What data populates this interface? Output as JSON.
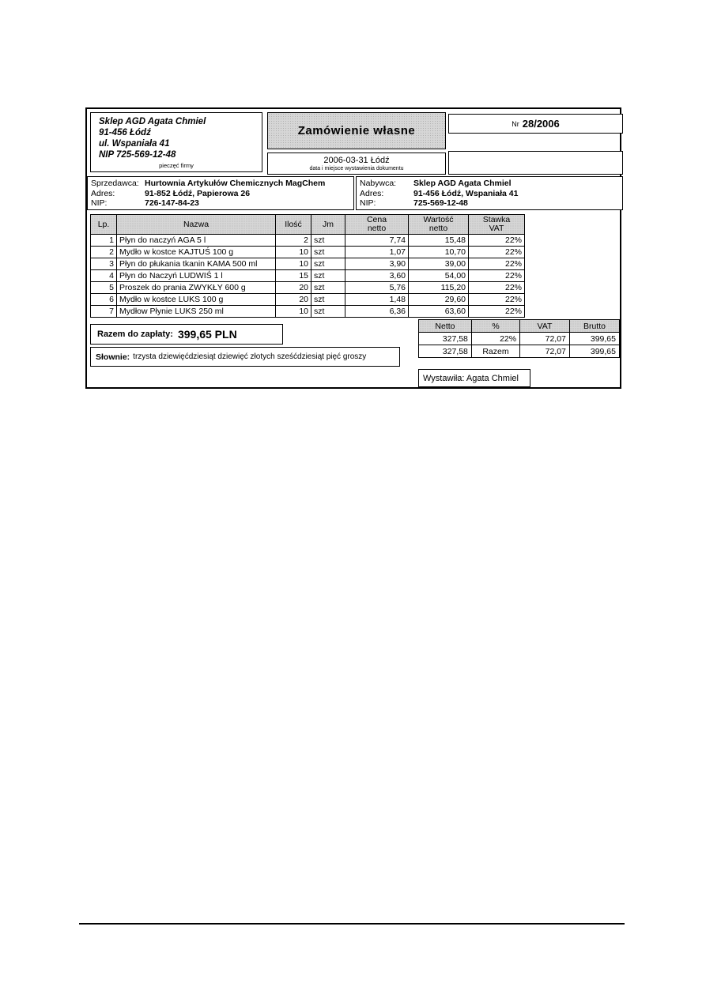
{
  "header": {
    "stamp": {
      "line1": "Sklep AGD Agata Chmiel",
      "line2": "91-456 Łódź",
      "line3": "ul. Wspaniała 41",
      "line4": "NIP 725-569-12-48",
      "caption": "pieczęć firmy"
    },
    "title": "Zamówienie własne",
    "date_place": "2006-03-31  Łódź",
    "date_caption": "data i miejsce wystawienia dokumentu",
    "number_label": "Nr",
    "number_value": "28/2006"
  },
  "parties": {
    "seller": {
      "label": "Sprzedawca:",
      "name": "Hurtownia Artykułów Chemicznych MagChem",
      "address_label": "Adres:",
      "address": "91-852 Łódź, Papierowa 26",
      "nip_label": "NIP:",
      "nip": "726-147-84-23"
    },
    "buyer": {
      "label": "Nabywca:",
      "name": "Sklep AGD Agata Chmiel",
      "address_label": "Adres:",
      "address": "91-456 Łódź, Wspaniała 41",
      "nip_label": "NIP:",
      "nip": "725-569-12-48"
    }
  },
  "items": {
    "headers": {
      "lp": "Lp.",
      "name": "Nazwa",
      "qty": "Ilość",
      "unit": "Jm",
      "price": "Cena\nnetto",
      "value": "Wartość\nnetto",
      "vat": "Stawka\nVAT"
    },
    "rows": [
      {
        "lp": "1",
        "name": "Płyn do naczyń AGA 5 l",
        "qty": "2",
        "unit": "szt",
        "price": "7,74",
        "value": "15,48",
        "vat": "22%"
      },
      {
        "lp": "2",
        "name": "Mydło w kostce KAJTUŚ 100 g",
        "qty": "10",
        "unit": "szt",
        "price": "1,07",
        "value": "10,70",
        "vat": "22%"
      },
      {
        "lp": "3",
        "name": "Płyn do płukania tkanin KAMA 500 ml",
        "qty": "10",
        "unit": "szt",
        "price": "3,90",
        "value": "39,00",
        "vat": "22%"
      },
      {
        "lp": "4",
        "name": "Płyn do Naczyń LUDWIŚ 1 l",
        "qty": "15",
        "unit": "szt",
        "price": "3,60",
        "value": "54,00",
        "vat": "22%"
      },
      {
        "lp": "5",
        "name": "Proszek do prania ZWYKŁY 600 g",
        "qty": "20",
        "unit": "szt",
        "price": "5,76",
        "value": "115,20",
        "vat": "22%"
      },
      {
        "lp": "6",
        "name": "Mydło w kostce LUKS 100 g",
        "qty": "20",
        "unit": "szt",
        "price": "1,48",
        "value": "29,60",
        "vat": "22%"
      },
      {
        "lp": "7",
        "name": "Mydłow Płynie LUKS 250 ml",
        "qty": "10",
        "unit": "szt",
        "price": "6,36",
        "value": "63,60",
        "vat": "22%"
      }
    ]
  },
  "summary": {
    "total_label": "Razem do zapłaty:",
    "total_value": "399,65 PLN",
    "in_words_label": "Słownie:",
    "in_words": "trzysta dziewięćdziesiąt dziewięć złotych sześćdziesiąt pięć groszy",
    "vat_table": {
      "headers": {
        "netto": "Netto",
        "pct": "%",
        "vat": "VAT",
        "brutto": "Brutto"
      },
      "rows": [
        {
          "netto": "327,58",
          "pct": "22%",
          "vat": "72,07",
          "brutto": "399,65"
        },
        {
          "netto": "327,58",
          "pct": "Razem",
          "vat": "72,07",
          "brutto": "399,65"
        }
      ]
    },
    "issued_by": "Wystawiła: Agata Chmiel"
  },
  "colors": {
    "header_fill": "#d6d6d6",
    "border": "#000000"
  }
}
